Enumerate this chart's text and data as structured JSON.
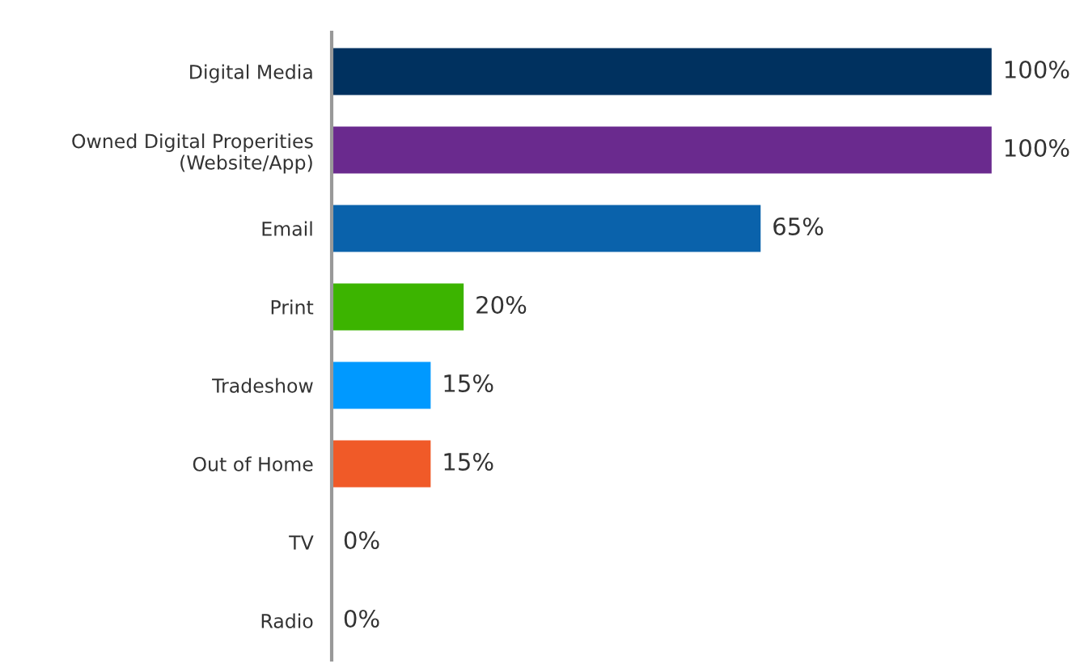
{
  "chart_data": {
    "type": "bar",
    "orientation": "horizontal",
    "categories": [
      "Digital Media",
      "Owned Digital Properities\n(Website/App)",
      "Email",
      "Print",
      "Tradeshow",
      "Out of Home",
      "TV",
      "Radio"
    ],
    "values": [
      100,
      100,
      65,
      20,
      15,
      15,
      0,
      0
    ],
    "colors": [
      "#00315f",
      "#6a2a8e",
      "#0a62ab",
      "#3cb400",
      "#0099ff",
      "#f05a28",
      "#cccccc",
      "#cccccc"
    ],
    "value_labels": [
      "100%",
      "100%",
      "65%",
      "20%",
      "15%",
      "15%",
      "0%",
      "0%"
    ]
  }
}
